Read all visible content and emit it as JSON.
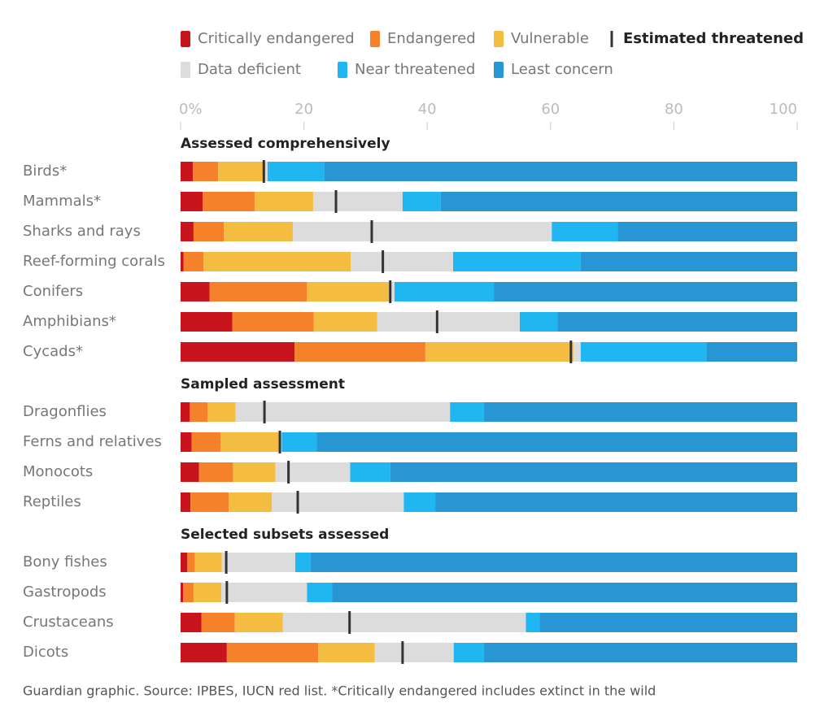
{
  "chart_data": {
    "type": "bar",
    "orientation": "horizontal",
    "stacked": true,
    "xlim": [
      0,
      100
    ],
    "xticks": [
      {
        "value": 0,
        "label": "0%"
      },
      20,
      40,
      60,
      80,
      100
    ],
    "series": [
      {
        "name": "Critically endangered",
        "color": "#c8141c"
      },
      {
        "name": "Endangered",
        "color": "#f5822a"
      },
      {
        "name": "Vulnerable",
        "color": "#f4bd41"
      },
      {
        "name": "Data deficient",
        "color": "#dcdcdc"
      },
      {
        "name": "Near threatened",
        "color": "#1fb6f2"
      },
      {
        "name": "Least concern",
        "color": "#2796d3"
      }
    ],
    "threatened": {
      "name": "Estimated threatened",
      "color": "#333333"
    },
    "groups": [
      {
        "title": "Assessed comprehensively",
        "categories": [
          "Birds*",
          "Mammals*",
          "Sharks and rays",
          "Reef-forming corals",
          "Conifers",
          "Amphibians*",
          "Cycads*"
        ],
        "series": [
          [
            2.0,
            3.6,
            2.1,
            0.5,
            4.7,
            8.4,
            18.5
          ],
          [
            4.1,
            8.4,
            4.9,
            3.2,
            15.8,
            13.2,
            21.2
          ],
          [
            7.3,
            9.5,
            11.2,
            23.9,
            13.3,
            10.3,
            24.0
          ],
          [
            0.7,
            14.5,
            42.0,
            16.6,
            0.9,
            23.1,
            1.2
          ],
          [
            9.2,
            6.2,
            10.7,
            20.7,
            16.1,
            6.1,
            20.4
          ],
          [
            76.7,
            57.8,
            29.1,
            35.1,
            49.2,
            38.9,
            14.7
          ]
        ],
        "threatened": [
          13.5,
          25.2,
          31,
          32.8,
          34,
          41.6,
          63.3
        ]
      },
      {
        "title": "Sampled assessment",
        "categories": [
          "Dragonflies",
          "Ferns and relatives",
          "Monocots",
          "Reptiles"
        ],
        "series": [
          [
            1.5,
            1.8,
            3.0,
            1.6
          ],
          [
            2.9,
            4.7,
            5.5,
            6.2
          ],
          [
            4.5,
            9.4,
            6.9,
            7.0
          ],
          [
            34.8,
            0.5,
            12.1,
            21.4
          ],
          [
            5.5,
            5.7,
            6.5,
            5.1
          ],
          [
            50.8,
            77.9,
            66.0,
            58.7
          ]
        ],
        "threatened": [
          13.6,
          16.1,
          17.5,
          19
        ]
      },
      {
        "title": "Selected subsets assessed",
        "categories": [
          "Bony fishes",
          "Gastropods",
          "Crustaceans",
          "Dicots"
        ],
        "series": [
          [
            1.1,
            0.4,
            3.4,
            7.5
          ],
          [
            1.2,
            1.7,
            5.4,
            14.8
          ],
          [
            4.4,
            4.5,
            7.8,
            9.2
          ],
          [
            11.9,
            13.9,
            39.4,
            12.8
          ],
          [
            2.5,
            4.1,
            2.2,
            4.9
          ],
          [
            78.9,
            75.4,
            41.8,
            50.8
          ]
        ],
        "threatened": [
          7.4,
          7.5,
          27.4,
          36
        ]
      }
    ],
    "source": "Guardian graphic. Source: IPBES, IUCN red list. *Critically endangered includes extinct in the wild"
  }
}
